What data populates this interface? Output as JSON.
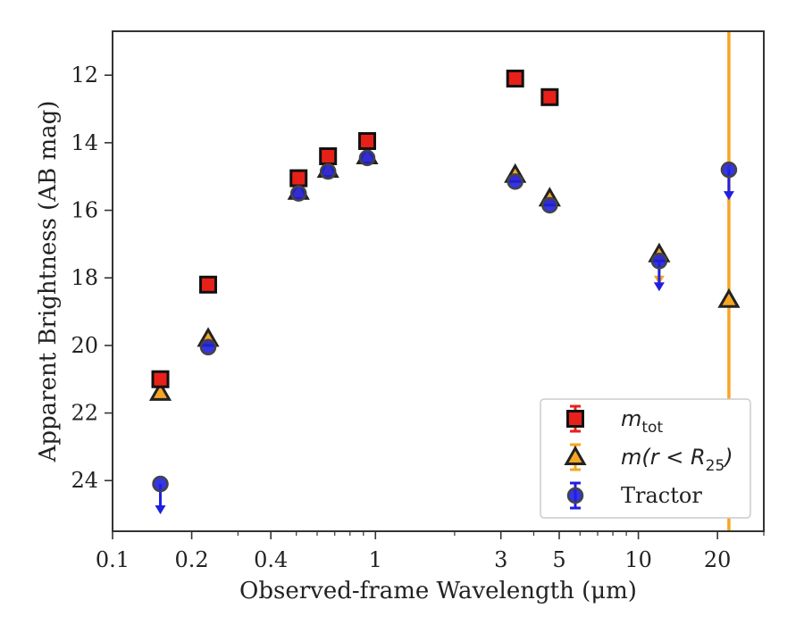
{
  "chart_data": {
    "type": "scatter",
    "xlabel": "Observed-frame Wavelength (μm)",
    "ylabel": "Apparent Brightness (AB mag)",
    "x_scale": "log",
    "xlim": [
      0.1,
      30
    ],
    "ylim": [
      25.5,
      10.7
    ],
    "y_inverted": true,
    "x_ticks": [
      0.1,
      0.2,
      0.4,
      1,
      3,
      5,
      10,
      20
    ],
    "x_tick_labels": [
      "0.1",
      "0.2",
      "0.4",
      "1",
      "3",
      "5",
      "10",
      "20"
    ],
    "y_ticks": [
      12,
      14,
      16,
      18,
      20,
      22,
      24
    ],
    "y_tick_labels": [
      "12",
      "14",
      "16",
      "18",
      "20",
      "22",
      "24"
    ],
    "grid": false,
    "legend_position": "lower-right",
    "vertical_line": {
      "x": 22.1,
      "color": "#f5a623"
    },
    "series": [
      {
        "name_main": "m",
        "name_sub": "tot",
        "marker": "square",
        "color": "#e8201a",
        "points": [
          {
            "x": 0.152,
            "y": 21.0
          },
          {
            "x": 0.231,
            "y": 18.2
          },
          {
            "x": 0.51,
            "y": 15.05
          },
          {
            "x": 0.66,
            "y": 14.4
          },
          {
            "x": 0.93,
            "y": 13.95
          },
          {
            "x": 3.4,
            "y": 12.1
          },
          {
            "x": 4.6,
            "y": 12.65
          }
        ]
      },
      {
        "name_main": "m(r < R",
        "name_sub": "25",
        "name_close": ")",
        "marker": "triangle",
        "color": "#f5a623",
        "points": [
          {
            "x": 0.152,
            "y": 21.4
          },
          {
            "x": 0.231,
            "y": 19.8
          },
          {
            "x": 0.51,
            "y": 15.45
          },
          {
            "x": 0.66,
            "y": 14.8
          },
          {
            "x": 0.93,
            "y": 14.4
          },
          {
            "x": 3.4,
            "y": 14.95
          },
          {
            "x": 4.6,
            "y": 15.65
          },
          {
            "x": 12.0,
            "y": 17.3,
            "upper_limit": true
          },
          {
            "x": 22.1,
            "y": 18.65
          }
        ]
      },
      {
        "name": "Tractor",
        "marker": "circle",
        "color": "#1f1fe0",
        "points": [
          {
            "x": 0.152,
            "y": 24.1,
            "upper_limit": true
          },
          {
            "x": 0.231,
            "y": 20.05
          },
          {
            "x": 0.51,
            "y": 15.5
          },
          {
            "x": 0.66,
            "y": 14.85
          },
          {
            "x": 0.93,
            "y": 14.45
          },
          {
            "x": 3.4,
            "y": 15.15
          },
          {
            "x": 4.6,
            "y": 15.85
          },
          {
            "x": 12.0,
            "y": 17.5,
            "upper_limit": true
          },
          {
            "x": 22.1,
            "y": 14.8,
            "upper_limit": true
          }
        ]
      }
    ],
    "legend": [
      {
        "label": "m_tot",
        "marker": "square"
      },
      {
        "label": "m(r < R_25)",
        "marker": "triangle"
      },
      {
        "label": "Tractor",
        "marker": "circle"
      }
    ]
  }
}
